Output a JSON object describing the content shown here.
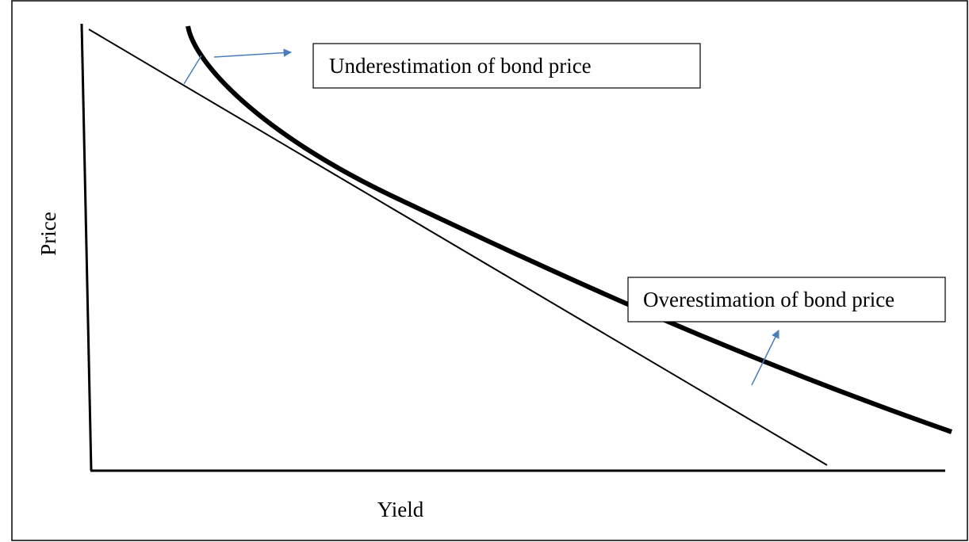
{
  "labels": {
    "y_axis": "Price",
    "x_axis": "Yield"
  },
  "annotations": [
    "Underestimation of bond price",
    "Overestimation of bond price"
  ]
}
